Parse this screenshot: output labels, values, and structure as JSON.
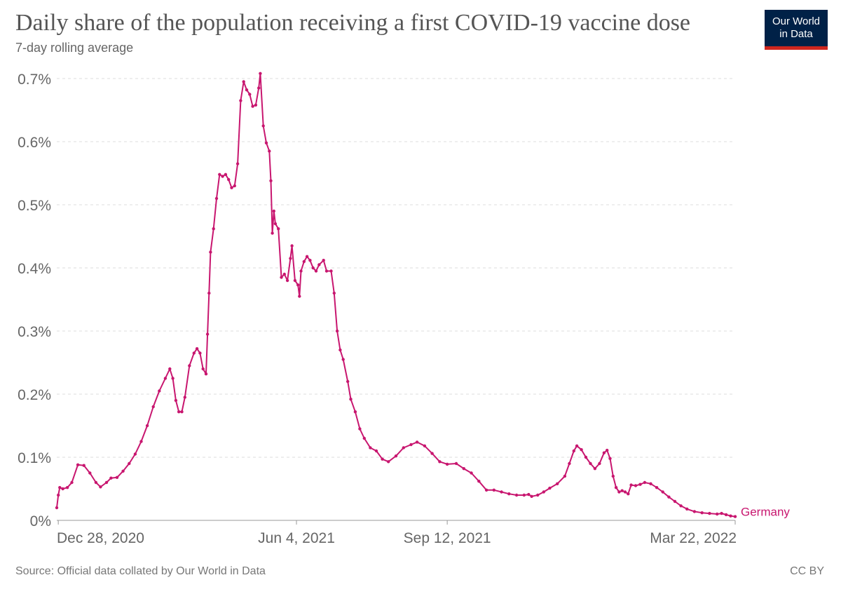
{
  "header": {
    "title": "Daily share of the population receiving a first COVID-19 vaccine dose",
    "subtitle": "7-day rolling average"
  },
  "logo": {
    "line1": "Our World",
    "line2": "in Data",
    "bg_color": "#002147",
    "accent_color": "#ce261e"
  },
  "footer": {
    "source": "Source: Official data collated by Our World in Data",
    "license": "CC BY"
  },
  "chart_data": {
    "type": "line",
    "title": "Daily share of the population receiving a first COVID-19 vaccine dose",
    "subtitle": "7-day rolling average",
    "x_start": "2020-12-27",
    "x_ticks": [
      {
        "date": "2020-12-28",
        "label": "Dec 28, 2020"
      },
      {
        "date": "2021-06-04",
        "label": "Jun 4, 2021"
      },
      {
        "date": "2021-09-12",
        "label": "Sep 12, 2021"
      },
      {
        "date": "2022-03-22",
        "label": "Mar 22, 2022"
      }
    ],
    "y_ticks": [
      {
        "value": 0,
        "label": "0%"
      },
      {
        "value": 0.1,
        "label": "0.1%"
      },
      {
        "value": 0.2,
        "label": "0.2%"
      },
      {
        "value": 0.3,
        "label": "0.3%"
      },
      {
        "value": 0.4,
        "label": "0.4%"
      },
      {
        "value": 0.5,
        "label": "0.5%"
      },
      {
        "value": 0.6,
        "label": "0.6%"
      },
      {
        "value": 0.7,
        "label": "0.7%"
      }
    ],
    "ylim": [
      0,
      0.7
    ],
    "grid": "horizontal dashed",
    "series": [
      {
        "name": "Germany",
        "color": "#c8166f",
        "points": [
          [
            "2020-12-27",
            0.02
          ],
          [
            "2020-12-28",
            0.04
          ],
          [
            "2020-12-29",
            0.052
          ],
          [
            "2020-12-31",
            0.05
          ],
          [
            "2021-01-03",
            0.052
          ],
          [
            "2021-01-06",
            0.06
          ],
          [
            "2021-01-10",
            0.088
          ],
          [
            "2021-01-14",
            0.087
          ],
          [
            "2021-01-18",
            0.075
          ],
          [
            "2021-01-22",
            0.06
          ],
          [
            "2021-01-25",
            0.053
          ],
          [
            "2021-01-29",
            0.06
          ],
          [
            "2021-02-01",
            0.067
          ],
          [
            "2021-02-05",
            0.068
          ],
          [
            "2021-02-09",
            0.078
          ],
          [
            "2021-02-13",
            0.09
          ],
          [
            "2021-02-17",
            0.105
          ],
          [
            "2021-02-21",
            0.125
          ],
          [
            "2021-02-25",
            0.15
          ],
          [
            "2021-03-01",
            0.18
          ],
          [
            "2021-03-05",
            0.205
          ],
          [
            "2021-03-09",
            0.225
          ],
          [
            "2021-03-12",
            0.24
          ],
          [
            "2021-03-14",
            0.225
          ],
          [
            "2021-03-16",
            0.19
          ],
          [
            "2021-03-18",
            0.172
          ],
          [
            "2021-03-20",
            0.172
          ],
          [
            "2021-03-22",
            0.195
          ],
          [
            "2021-03-25",
            0.245
          ],
          [
            "2021-03-28",
            0.265
          ],
          [
            "2021-03-30",
            0.272
          ],
          [
            "2021-04-01",
            0.265
          ],
          [
            "2021-04-03",
            0.24
          ],
          [
            "2021-04-05",
            0.232
          ],
          [
            "2021-04-06",
            0.295
          ],
          [
            "2021-04-07",
            0.36
          ],
          [
            "2021-04-08",
            0.425
          ],
          [
            "2021-04-10",
            0.462
          ],
          [
            "2021-04-12",
            0.51
          ],
          [
            "2021-04-14",
            0.548
          ],
          [
            "2021-04-16",
            0.545
          ],
          [
            "2021-04-18",
            0.548
          ],
          [
            "2021-04-20",
            0.54
          ],
          [
            "2021-04-22",
            0.527
          ],
          [
            "2021-04-24",
            0.53
          ],
          [
            "2021-04-26",
            0.565
          ],
          [
            "2021-04-28",
            0.665
          ],
          [
            "2021-04-30",
            0.695
          ],
          [
            "2021-05-02",
            0.682
          ],
          [
            "2021-05-04",
            0.675
          ],
          [
            "2021-05-06",
            0.656
          ],
          [
            "2021-05-08",
            0.658
          ],
          [
            "2021-05-10",
            0.685
          ],
          [
            "2021-05-11",
            0.708
          ],
          [
            "2021-05-13",
            0.625
          ],
          [
            "2021-05-15",
            0.598
          ],
          [
            "2021-05-17",
            0.585
          ],
          [
            "2021-05-18",
            0.538
          ],
          [
            "2021-05-19",
            0.455
          ],
          [
            "2021-05-20",
            0.49
          ],
          [
            "2021-05-21",
            0.47
          ],
          [
            "2021-05-23",
            0.462
          ],
          [
            "2021-05-25",
            0.385
          ],
          [
            "2021-05-27",
            0.39
          ],
          [
            "2021-05-29",
            0.38
          ],
          [
            "2021-05-31",
            0.415
          ],
          [
            "2021-06-01",
            0.435
          ],
          [
            "2021-06-03",
            0.38
          ],
          [
            "2021-06-05",
            0.373
          ],
          [
            "2021-06-06",
            0.355
          ],
          [
            "2021-06-07",
            0.395
          ],
          [
            "2021-06-09",
            0.41
          ],
          [
            "2021-06-11",
            0.418
          ],
          [
            "2021-06-13",
            0.412
          ],
          [
            "2021-06-15",
            0.4
          ],
          [
            "2021-06-17",
            0.395
          ],
          [
            "2021-06-19",
            0.405
          ],
          [
            "2021-06-22",
            0.412
          ],
          [
            "2021-06-24",
            0.395
          ],
          [
            "2021-06-27",
            0.395
          ],
          [
            "2021-06-29",
            0.36
          ],
          [
            "2021-07-01",
            0.3
          ],
          [
            "2021-07-03",
            0.27
          ],
          [
            "2021-07-05",
            0.255
          ],
          [
            "2021-07-08",
            0.22
          ],
          [
            "2021-07-10",
            0.192
          ],
          [
            "2021-07-13",
            0.172
          ],
          [
            "2021-07-16",
            0.145
          ],
          [
            "2021-07-19",
            0.13
          ],
          [
            "2021-07-23",
            0.115
          ],
          [
            "2021-07-27",
            0.11
          ],
          [
            "2021-07-31",
            0.097
          ],
          [
            "2021-08-04",
            0.093
          ],
          [
            "2021-08-09",
            0.102
          ],
          [
            "2021-08-14",
            0.115
          ],
          [
            "2021-08-19",
            0.12
          ],
          [
            "2021-08-23",
            0.124
          ],
          [
            "2021-08-28",
            0.118
          ],
          [
            "2021-09-02",
            0.106
          ],
          [
            "2021-09-07",
            0.093
          ],
          [
            "2021-09-12",
            0.089
          ],
          [
            "2021-09-18",
            0.09
          ],
          [
            "2021-09-23",
            0.082
          ],
          [
            "2021-09-28",
            0.075
          ],
          [
            "2021-10-03",
            0.062
          ],
          [
            "2021-10-08",
            0.048
          ],
          [
            "2021-10-13",
            0.048
          ],
          [
            "2021-10-18",
            0.045
          ],
          [
            "2021-10-23",
            0.042
          ],
          [
            "2021-10-28",
            0.04
          ],
          [
            "2021-11-02",
            0.04
          ],
          [
            "2021-11-05",
            0.041
          ],
          [
            "2021-11-07",
            0.038
          ],
          [
            "2021-11-11",
            0.04
          ],
          [
            "2021-11-15",
            0.045
          ],
          [
            "2021-11-19",
            0.051
          ],
          [
            "2021-11-24",
            0.058
          ],
          [
            "2021-11-29",
            0.07
          ],
          [
            "2021-12-02",
            0.09
          ],
          [
            "2021-12-05",
            0.11
          ],
          [
            "2021-12-07",
            0.118
          ],
          [
            "2021-12-10",
            0.112
          ],
          [
            "2021-12-13",
            0.1
          ],
          [
            "2021-12-16",
            0.09
          ],
          [
            "2021-12-19",
            0.082
          ],
          [
            "2021-12-22",
            0.09
          ],
          [
            "2021-12-25",
            0.107
          ],
          [
            "2021-12-27",
            0.111
          ],
          [
            "2021-12-29",
            0.098
          ],
          [
            "2021-12-31",
            0.07
          ],
          [
            "2022-01-02",
            0.052
          ],
          [
            "2022-01-04",
            0.045
          ],
          [
            "2022-01-06",
            0.047
          ],
          [
            "2022-01-08",
            0.045
          ],
          [
            "2022-01-10",
            0.042
          ],
          [
            "2022-01-12",
            0.056
          ],
          [
            "2022-01-15",
            0.055
          ],
          [
            "2022-01-18",
            0.057
          ],
          [
            "2022-01-21",
            0.06
          ],
          [
            "2022-01-25",
            0.058
          ],
          [
            "2022-01-29",
            0.052
          ],
          [
            "2022-02-02",
            0.045
          ],
          [
            "2022-02-06",
            0.037
          ],
          [
            "2022-02-10",
            0.03
          ],
          [
            "2022-02-14",
            0.023
          ],
          [
            "2022-02-18",
            0.018
          ],
          [
            "2022-02-23",
            0.014
          ],
          [
            "2022-02-28",
            0.012
          ],
          [
            "2022-03-05",
            0.011
          ],
          [
            "2022-03-10",
            0.01
          ],
          [
            "2022-03-13",
            0.011
          ],
          [
            "2022-03-16",
            0.009
          ],
          [
            "2022-03-19",
            0.007
          ],
          [
            "2022-03-22",
            0.006
          ]
        ]
      }
    ]
  }
}
